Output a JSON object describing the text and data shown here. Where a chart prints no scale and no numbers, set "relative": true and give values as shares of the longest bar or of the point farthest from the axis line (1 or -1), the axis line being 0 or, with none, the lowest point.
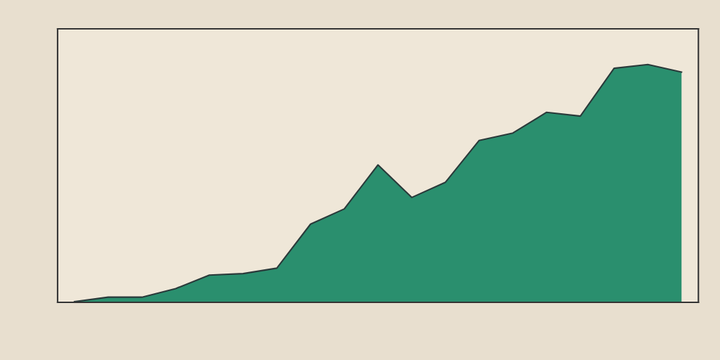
{
  "chart_data": {
    "type": "area",
    "relative": true,
    "categories": [
      null,
      null,
      null,
      null,
      null,
      null,
      null,
      null,
      null,
      null,
      null,
      null,
      null,
      null,
      null,
      null,
      null,
      null,
      null
    ],
    "series": [
      {
        "color": "#1f8a68",
        "values": [
          0.003,
          0.022,
          0.022,
          0.058,
          0.115,
          0.121,
          0.144,
          0.329,
          0.393,
          0.578,
          0.441,
          0.505,
          0.681,
          0.712,
          0.799,
          0.783,
          0.984,
          1,
          0.968
        ]
      }
    ]
  }
}
